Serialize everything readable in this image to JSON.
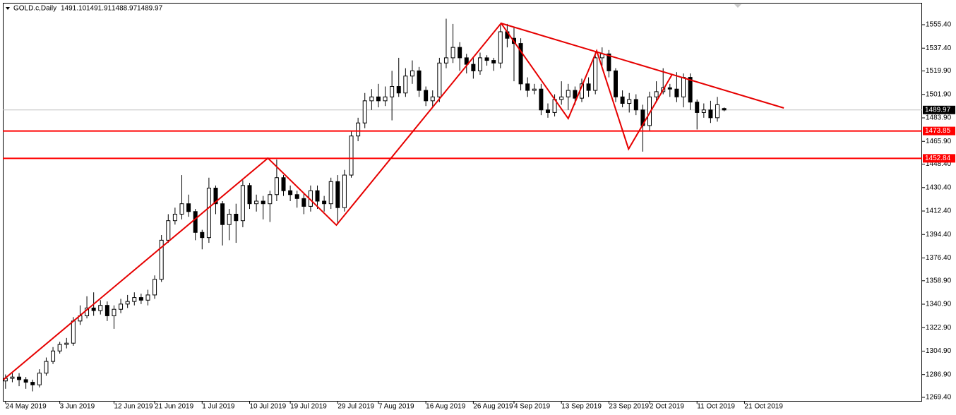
{
  "chart_data": {
    "type": "candlestick",
    "header": {
      "symbol": "GOLD.c,Daily",
      "ohlc": [
        "1491.10",
        "1491.91",
        "1488.97",
        "1489.97"
      ]
    },
    "x": [
      0,
      1,
      2,
      3,
      4,
      5,
      6,
      7,
      8,
      9,
      10,
      11,
      12,
      13,
      14,
      15,
      16,
      17,
      18,
      19,
      20,
      21,
      22,
      23,
      24,
      25,
      26,
      27,
      28,
      29,
      30,
      31,
      32,
      33,
      34,
      35,
      36,
      37,
      38,
      39,
      40,
      41,
      42,
      43,
      44,
      45,
      46,
      47,
      48,
      49,
      50,
      51,
      52,
      53,
      54,
      55,
      56,
      57,
      58,
      59,
      60,
      61,
      62,
      63,
      64,
      65,
      66,
      67,
      68,
      69,
      70,
      71,
      72,
      73,
      74,
      75,
      76,
      77,
      78,
      79,
      80,
      81,
      82,
      83,
      84,
      85,
      86,
      87,
      88,
      89,
      90,
      91,
      92,
      93,
      94,
      95,
      96,
      97,
      98,
      99,
      100,
      101,
      102,
      103,
      104,
      105,
      106
    ],
    "open": [
      1282,
      1284,
      1285,
      1283,
      1281,
      1279,
      1288,
      1297,
      1305,
      1310,
      1311,
      1328,
      1332,
      1338,
      1336,
      1340,
      1332,
      1337,
      1341,
      1343,
      1346,
      1344,
      1348,
      1360,
      1390,
      1405,
      1410,
      1418,
      1412,
      1396,
      1392,
      1430,
      1418,
      1402,
      1410,
      1405,
      1432,
      1418,
      1420,
      1418,
      1425,
      1438,
      1428,
      1425,
      1422,
      1416,
      1428,
      1420,
      1418,
      1435,
      1415,
      1440,
      1470,
      1480,
      1497,
      1500,
      1497,
      1500,
      1508,
      1503,
      1516,
      1520,
      1505,
      1497,
      1500,
      1526,
      1530,
      1538,
      1530,
      1525,
      1520,
      1530,
      1528,
      1526,
      1550,
      1545,
      1541,
      1510,
      1505,
      1506,
      1490,
      1488,
      1498,
      1500,
      1505,
      1499,
      1510,
      1505,
      1530,
      1533,
      1520,
      1500,
      1495,
      1498,
      1490,
      1478,
      1500,
      1504,
      1507,
      1506,
      1500,
      1515,
      1496,
      1488,
      1490,
      1484,
      1491.1
    ],
    "high": [
      1287,
      1288,
      1288,
      1285,
      1283,
      1291,
      1300,
      1308,
      1312,
      1315,
      1331,
      1340,
      1347,
      1350,
      1344,
      1343,
      1340,
      1345,
      1348,
      1350,
      1349,
      1352,
      1363,
      1394,
      1410,
      1415,
      1440,
      1425,
      1414,
      1398,
      1438,
      1432,
      1420,
      1414,
      1418,
      1436,
      1434,
      1425,
      1424,
      1428,
      1452,
      1440,
      1432,
      1428,
      1426,
      1432,
      1432,
      1424,
      1438,
      1440,
      1444,
      1474,
      1484,
      1503,
      1506,
      1510,
      1508,
      1520,
      1530,
      1522,
      1528,
      1523,
      1508,
      1505,
      1530,
      1560,
      1556,
      1542,
      1533,
      1530,
      1534,
      1532,
      1530,
      1556,
      1556,
      1553,
      1545,
      1515,
      1510,
      1510,
      1495,
      1502,
      1512,
      1510,
      1508,
      1514,
      1515,
      1535,
      1538,
      1536,
      1522,
      1505,
      1503,
      1502,
      1494,
      1504,
      1512,
      1522,
      1510,
      1519,
      1518,
      1518,
      1498,
      1495,
      1497,
      1500,
      1491.91
    ],
    "low": [
      1276,
      1281,
      1278,
      1276,
      1274,
      1277,
      1286,
      1295,
      1303,
      1307,
      1309,
      1325,
      1330,
      1332,
      1333,
      1328,
      1322,
      1334,
      1338,
      1340,
      1341,
      1340,
      1345,
      1358,
      1388,
      1402,
      1406,
      1408,
      1390,
      1383,
      1388,
      1410,
      1386,
      1390,
      1388,
      1400,
      1414,
      1412,
      1406,
      1404,
      1420,
      1424,
      1420,
      1415,
      1410,
      1412,
      1414,
      1412,
      1414,
      1402,
      1412,
      1438,
      1466,
      1476,
      1490,
      1492,
      1493,
      1482,
      1500,
      1500,
      1510,
      1500,
      1493,
      1492,
      1496,
      1522,
      1526,
      1520,
      1518,
      1514,
      1517,
      1524,
      1520,
      1522,
      1538,
      1512,
      1505,
      1500,
      1502,
      1486,
      1484,
      1485,
      1494,
      1490,
      1494,
      1496,
      1500,
      1502,
      1524,
      1515,
      1496,
      1492,
      1488,
      1486,
      1458,
      1474,
      1496,
      1502,
      1500,
      1496,
      1492,
      1490,
      1475,
      1484,
      1480,
      1481,
      1488.97
    ],
    "close": [
      1284,
      1285,
      1283,
      1281,
      1279,
      1288,
      1297,
      1305,
      1310,
      1311,
      1328,
      1332,
      1338,
      1336,
      1340,
      1332,
      1337,
      1341,
      1343,
      1346,
      1344,
      1348,
      1360,
      1390,
      1405,
      1410,
      1418,
      1412,
      1396,
      1392,
      1430,
      1418,
      1402,
      1410,
      1405,
      1432,
      1418,
      1420,
      1418,
      1425,
      1438,
      1428,
      1425,
      1422,
      1416,
      1428,
      1420,
      1418,
      1435,
      1415,
      1440,
      1470,
      1480,
      1497,
      1500,
      1497,
      1500,
      1508,
      1503,
      1516,
      1520,
      1505,
      1497,
      1500,
      1526,
      1530,
      1538,
      1530,
      1525,
      1520,
      1530,
      1528,
      1526,
      1550,
      1545,
      1541,
      1510,
      1505,
      1506,
      1490,
      1488,
      1498,
      1500,
      1505,
      1499,
      1510,
      1505,
      1530,
      1533,
      1520,
      1500,
      1495,
      1498,
      1490,
      1478,
      1500,
      1504,
      1507,
      1506,
      1500,
      1515,
      1496,
      1488,
      1490,
      1484,
      1494,
      1489.97
    ],
    "xlim": [
      -0.4,
      135.2
    ],
    "xticks": [
      {
        "value": 0,
        "label": "24 May 2019"
      },
      {
        "value": 8,
        "label": "3 Jun 2019"
      },
      {
        "value": 16,
        "label": "12 Jun 2019"
      },
      {
        "value": 22,
        "label": "21 Jun 2019"
      },
      {
        "value": 29,
        "label": "1 Jul 2019"
      },
      {
        "value": 36,
        "label": "10 Jul 2019"
      },
      {
        "value": 42,
        "label": "19 Jul 2019"
      },
      {
        "value": 49,
        "label": "29 Jul 2019"
      },
      {
        "value": 55,
        "label": "7 Aug 2019"
      },
      {
        "value": 62,
        "label": "16 Aug 2019"
      },
      {
        "value": 69,
        "label": "26 Aug 2019"
      },
      {
        "value": 75,
        "label": "4 Sep 2019"
      },
      {
        "value": 82,
        "label": "13 Sep 2019"
      },
      {
        "value": 89,
        "label": "23 Sep 2019"
      },
      {
        "value": 95,
        "label": "2 Oct 2019"
      },
      {
        "value": 102,
        "label": "11 Oct 2019"
      },
      {
        "value": 109,
        "label": "21 Oct 2019"
      }
    ],
    "ylim": [
      1266.7,
      1572.2
    ],
    "yticks": [
      {
        "value": 1555.4,
        "label": "1555.40"
      },
      {
        "value": 1537.4,
        "label": "1537.40"
      },
      {
        "value": 1519.9,
        "label": "1519.90"
      },
      {
        "value": 1501.9,
        "label": "1501.90"
      },
      {
        "value": 1483.9,
        "label": "1483.90"
      },
      {
        "value": 1465.9,
        "label": "1465.90"
      },
      {
        "value": 1448.4,
        "label": "1448.40"
      },
      {
        "value": 1430.4,
        "label": "1430.40"
      },
      {
        "value": 1412.4,
        "label": "1412.40"
      },
      {
        "value": 1394.4,
        "label": "1394.40"
      },
      {
        "value": 1376.4,
        "label": "1376.40"
      },
      {
        "value": 1358.9,
        "label": "1358.90"
      },
      {
        "value": 1340.9,
        "label": "1340.90"
      },
      {
        "value": 1322.9,
        "label": "1322.90"
      },
      {
        "value": 1304.9,
        "label": "1304.90"
      },
      {
        "value": 1286.9,
        "label": "1286.90"
      },
      {
        "value": 1269.4,
        "label": "1269.40"
      }
    ],
    "levels": [
      {
        "value": 1473.85,
        "color": "#ff0000"
      },
      {
        "value": 1452.84,
        "color": "#ff0000"
      }
    ],
    "current_price": {
      "value": 1489.97,
      "color": "#c0c0c0"
    },
    "zigzag": {
      "color": "#e60000",
      "x": [
        -0.3,
        38.7,
        48.8,
        73.1,
        83,
        87.2,
        91.9,
        98.3
      ],
      "values": [
        1283,
        1453,
        1401.6,
        1556.5,
        1483.4,
        1535.4,
        1460,
        1517
      ]
    },
    "trendline": {
      "color": "#e60000",
      "x": [
        73.1,
        114.8
      ],
      "values": [
        1556.5,
        1491.5
      ]
    },
    "bull_color": "#ffffff",
    "bear_color": "#000000",
    "grid": false
  }
}
